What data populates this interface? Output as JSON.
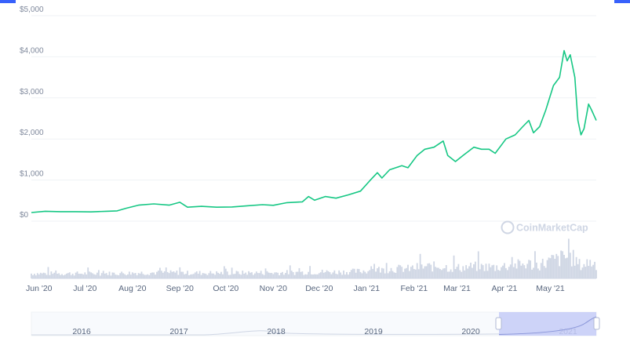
{
  "watermark": "CoinMarketCap",
  "colors": {
    "line": "#16c784",
    "volume": "#cfd6e4",
    "grid": "#eff2f5",
    "navigator_fill": "#c5cbf7",
    "corner": "#3861fb"
  },
  "chart_data": {
    "type": "line",
    "ylim": [
      0,
      5000
    ],
    "y_ticks": [
      "$0",
      "$1,000",
      "$2,000",
      "$3,000",
      "$4,000",
      "$5,000"
    ],
    "x_ticks": [
      "Jun '20",
      "Jul '20",
      "Aug '20",
      "Sep '20",
      "Oct '20",
      "Nov '20",
      "Dec '20",
      "Jan '21",
      "Feb '21",
      "Mar '21",
      "Apr '21",
      "May '21"
    ],
    "grid": true,
    "series": [
      {
        "kind": "price",
        "points": [
          [
            "2020-05-27",
            210
          ],
          [
            "2020-06-05",
            240
          ],
          [
            "2020-06-15",
            230
          ],
          [
            "2020-06-25",
            230
          ],
          [
            "2020-07-05",
            225
          ],
          [
            "2020-07-15",
            240
          ],
          [
            "2020-07-22",
            250
          ],
          [
            "2020-07-28",
            315
          ],
          [
            "2020-08-05",
            390
          ],
          [
            "2020-08-15",
            420
          ],
          [
            "2020-08-25",
            390
          ],
          [
            "2020-09-01",
            460
          ],
          [
            "2020-09-06",
            340
          ],
          [
            "2020-09-15",
            360
          ],
          [
            "2020-09-25",
            340
          ],
          [
            "2020-10-05",
            345
          ],
          [
            "2020-10-15",
            375
          ],
          [
            "2020-10-25",
            400
          ],
          [
            "2020-11-01",
            385
          ],
          [
            "2020-11-10",
            450
          ],
          [
            "2020-11-20",
            470
          ],
          [
            "2020-11-24",
            600
          ],
          [
            "2020-11-28",
            510
          ],
          [
            "2020-12-05",
            600
          ],
          [
            "2020-12-12",
            560
          ],
          [
            "2020-12-20",
            640
          ],
          [
            "2020-12-28",
            730
          ],
          [
            "2021-01-03",
            980
          ],
          [
            "2021-01-08",
            1180
          ],
          [
            "2021-01-11",
            1050
          ],
          [
            "2021-01-16",
            1250
          ],
          [
            "2021-01-20",
            1300
          ],
          [
            "2021-01-24",
            1350
          ],
          [
            "2021-01-28",
            1300
          ],
          [
            "2021-02-03",
            1600
          ],
          [
            "2021-02-08",
            1750
          ],
          [
            "2021-02-14",
            1800
          ],
          [
            "2021-02-20",
            1950
          ],
          [
            "2021-02-23",
            1600
          ],
          [
            "2021-02-28",
            1450
          ],
          [
            "2021-03-05",
            1600
          ],
          [
            "2021-03-12",
            1800
          ],
          [
            "2021-03-17",
            1750
          ],
          [
            "2021-03-22",
            1750
          ],
          [
            "2021-03-26",
            1650
          ],
          [
            "2021-04-02",
            2000
          ],
          [
            "2021-04-08",
            2100
          ],
          [
            "2021-04-13",
            2300
          ],
          [
            "2021-04-17",
            2450
          ],
          [
            "2021-04-20",
            2150
          ],
          [
            "2021-04-24",
            2300
          ],
          [
            "2021-04-28",
            2700
          ],
          [
            "2021-05-03",
            3300
          ],
          [
            "2021-05-07",
            3500
          ],
          [
            "2021-05-10",
            4150
          ],
          [
            "2021-05-12",
            3900
          ],
          [
            "2021-05-14",
            4050
          ],
          [
            "2021-05-17",
            3500
          ],
          [
            "2021-05-19",
            2450
          ],
          [
            "2021-05-21",
            2100
          ],
          [
            "2021-05-23",
            2250
          ],
          [
            "2021-05-26",
            2850
          ],
          [
            "2021-05-28",
            2700
          ],
          [
            "2021-05-31",
            2450
          ]
        ]
      }
    ],
    "navigator": {
      "labels": [
        "2016",
        "2017",
        "2018",
        "2019",
        "2020",
        "2021"
      ]
    }
  }
}
